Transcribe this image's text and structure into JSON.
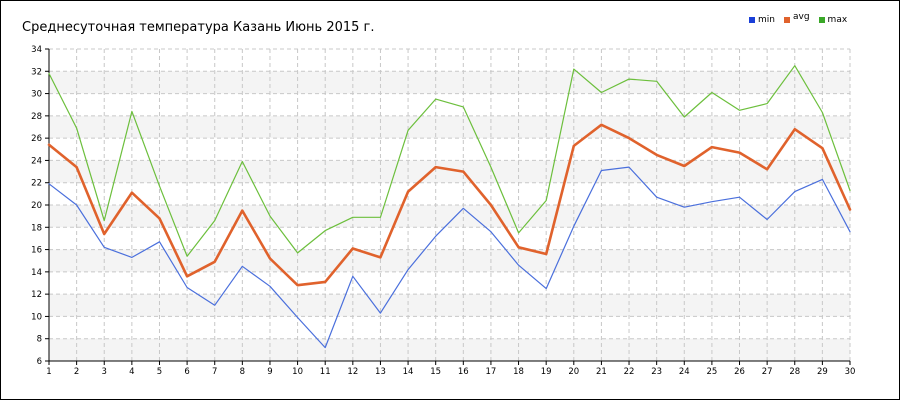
{
  "chart_data": {
    "type": "line",
    "title": "Среднесуточная температура Казань  Июнь 2015 г.",
    "xlabel": "",
    "ylabel": "",
    "x": [
      1,
      2,
      3,
      4,
      5,
      6,
      7,
      8,
      9,
      10,
      11,
      12,
      13,
      14,
      15,
      16,
      17,
      18,
      19,
      20,
      21,
      22,
      23,
      24,
      25,
      26,
      27,
      28,
      29,
      30
    ],
    "ylim": [
      6,
      34
    ],
    "yticks": [
      6,
      8,
      10,
      12,
      14,
      16,
      18,
      20,
      22,
      24,
      26,
      28,
      30,
      32,
      34
    ],
    "grid": true,
    "legend_position": "top-right",
    "series": [
      {
        "name": "min",
        "color": "#4a6fdc",
        "legend_color": "#1a3fd8",
        "values": [
          21.9,
          20.0,
          16.2,
          15.3,
          16.7,
          12.6,
          11.0,
          14.5,
          12.7,
          9.9,
          7.2,
          13.6,
          10.3,
          14.2,
          17.2,
          19.7,
          17.6,
          14.6,
          12.5,
          18.1,
          23.1,
          23.4,
          20.7,
          19.8,
          20.3,
          20.7,
          18.7,
          21.2,
          22.3,
          17.6
        ]
      },
      {
        "name": "avg",
        "color": "#e0622c",
        "legend_color": "#e0622c",
        "values": [
          25.4,
          23.4,
          17.4,
          21.1,
          18.8,
          13.6,
          14.9,
          19.5,
          15.2,
          12.8,
          13.1,
          16.1,
          15.3,
          21.2,
          23.4,
          23.0,
          20.0,
          16.2,
          15.6,
          25.3,
          27.2,
          26.0,
          24.5,
          23.5,
          25.2,
          24.7,
          23.2,
          26.8,
          25.1,
          19.6
        ]
      },
      {
        "name": "max",
        "color": "#6cbf3c",
        "legend_color": "#3aa828",
        "values": [
          31.8,
          26.9,
          18.6,
          28.4,
          21.7,
          15.4,
          18.6,
          23.9,
          19.0,
          15.7,
          17.7,
          18.9,
          18.9,
          26.7,
          29.5,
          28.8,
          23.4,
          17.5,
          20.4,
          32.2,
          30.1,
          31.3,
          31.1,
          27.9,
          30.1,
          28.5,
          29.1,
          32.5,
          28.3,
          21.3
        ]
      }
    ]
  }
}
